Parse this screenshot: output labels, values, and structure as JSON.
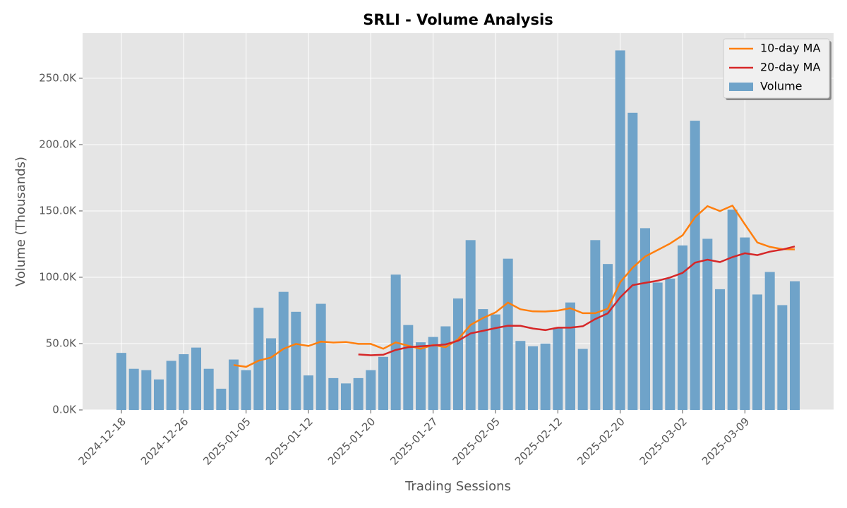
{
  "chart_data": {
    "type": "bar",
    "title": "SRLI - Volume Analysis",
    "x_label": "Trading Sessions",
    "y_label": "Volume (Thousands)",
    "categories": [
      "2024-12-18",
      null,
      null,
      null,
      null,
      "2024-12-26",
      null,
      null,
      null,
      null,
      "2025-01-05",
      null,
      null,
      null,
      null,
      "2025-01-12",
      null,
      null,
      null,
      null,
      "2025-01-20",
      null,
      null,
      null,
      null,
      "2025-01-27",
      null,
      null,
      null,
      null,
      "2025-02-05",
      null,
      null,
      null,
      null,
      "2025-02-12",
      null,
      null,
      null,
      null,
      "2025-02-20",
      null,
      null,
      null,
      null,
      "2025-03-02",
      null,
      null,
      null,
      null,
      "2025-03-09",
      null,
      null,
      null,
      null
    ],
    "series": [
      {
        "name": "10-day MA",
        "type": "line",
        "color": "#ff7f0e",
        "values": [
          null,
          null,
          null,
          null,
          null,
          null,
          null,
          null,
          null,
          33.8,
          32.5,
          37.1,
          39.5,
          46.1,
          49.8,
          48.2,
          51.5,
          50.8,
          51.2,
          49.8,
          49.8,
          46.1,
          50.9,
          48.4,
          46.1,
          49.0,
          47.3,
          53.3,
          64.1,
          69.3,
          73.5,
          80.9,
          75.9,
          74.3,
          74.2,
          74.9,
          76.7,
          72.9,
          72.9,
          76.3,
          96.2,
          107.2,
          115.7,
          120.5,
          125.4,
          131.6,
          145.3,
          153.6,
          149.9,
          154.0,
          139.9,
          126.2,
          122.9,
          121.2,
          121.0
        ]
      },
      {
        "name": "20-day MA",
        "type": "line",
        "color": "#d62728",
        "values": [
          null,
          null,
          null,
          null,
          null,
          null,
          null,
          null,
          null,
          null,
          null,
          null,
          null,
          null,
          null,
          null,
          null,
          null,
          null,
          41.8,
          41.2,
          41.6,
          45.2,
          47.3,
          48.0,
          48.6,
          49.4,
          52.1,
          57.7,
          59.6,
          61.7,
          63.5,
          63.4,
          61.4,
          60.2,
          62.0,
          62.0,
          63.1,
          68.5,
          72.8,
          84.9,
          94.1,
          95.8,
          97.4,
          99.8,
          103.3,
          111.0,
          113.3,
          111.4,
          115.2,
          118.1,
          116.7,
          119.3,
          120.9,
          123.2
        ]
      },
      {
        "name": "Volume",
        "type": "bar",
        "color": "#6fa3c9",
        "values": [
          43,
          31,
          30,
          23,
          37,
          42,
          47,
          31,
          16,
          38,
          30,
          77,
          54,
          89,
          74,
          26,
          80,
          24,
          20,
          24,
          30,
          40,
          102,
          64,
          51,
          55,
          63,
          84,
          128,
          76,
          72,
          114,
          52,
          48,
          50,
          62,
          81,
          46,
          128,
          110,
          271,
          224,
          137,
          96,
          99,
          124,
          218,
          129,
          91,
          151,
          130,
          87,
          104,
          79,
          97
        ]
      }
    ],
    "ylim": [
      0,
      284
    ],
    "yticks": [
      {
        "value": 0,
        "label": "0.0K"
      },
      {
        "value": 50,
        "label": "50.0K"
      },
      {
        "value": 100,
        "label": "100.0K"
      },
      {
        "value": 150,
        "label": "150.0K"
      },
      {
        "value": 200,
        "label": "200.0K"
      },
      {
        "value": 250,
        "label": "250.0K"
      }
    ],
    "grid": true,
    "legend": "upper right"
  }
}
